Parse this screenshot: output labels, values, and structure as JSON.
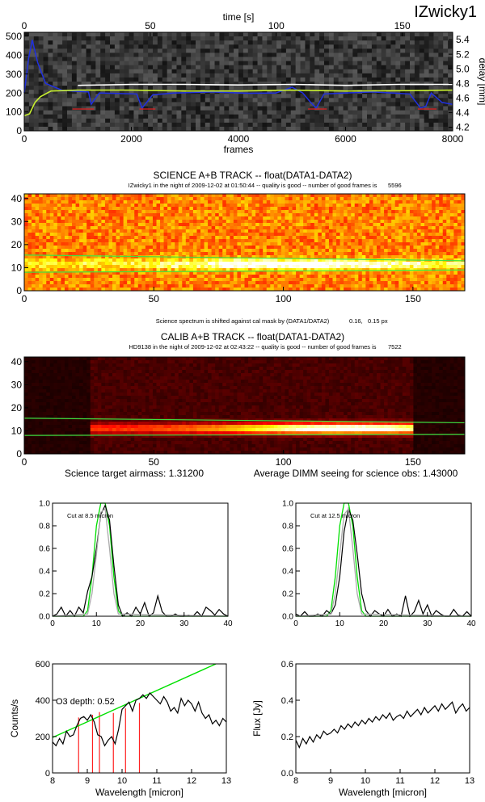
{
  "page_title": "IZwicky1",
  "chart_data": [
    {
      "id": "delay",
      "type": "line",
      "xlabel": "frames",
      "top_xlabel": "time [s]",
      "ylabel_right": "delay [mm]",
      "xlim": [
        0,
        8000
      ],
      "ylim": [
        0,
        520
      ],
      "top_xlim": [
        0,
        170
      ],
      "right_ylim": [
        4.15,
        5.5
      ],
      "x_ticks": [
        "0",
        "2000",
        "4000",
        "6000",
        "8000"
      ],
      "top_ticks": [
        "0",
        "50",
        "100",
        "150"
      ],
      "y_ticks": [
        "0",
        "100",
        "200",
        "300",
        "400",
        "500"
      ],
      "right_ticks": [
        "4.2",
        "4.4",
        "4.6",
        "4.8",
        "5.0",
        "5.2",
        "5.4"
      ],
      "background": "grayscale-noise",
      "series": [
        {
          "color": "#2030e0",
          "x": [
            0,
            80,
            150,
            250,
            400,
            700,
            900,
            1200,
            1250,
            1400,
            2100,
            2200,
            2400,
            2800,
            3500,
            4200,
            4700,
            5000,
            5200,
            5350,
            5450,
            5600,
            6000,
            6500,
            7200,
            7400,
            7500,
            7600,
            7800,
            8000
          ],
          "y": [
            200,
            380,
            480,
            360,
            250,
            215,
            210,
            205,
            140,
            200,
            195,
            120,
            190,
            200,
            205,
            198,
            200,
            230,
            200,
            150,
            120,
            195,
            200,
            205,
            195,
            120,
            130,
            200,
            150,
            140
          ]
        },
        {
          "color": "#c8f030",
          "x": [
            0,
            100,
            200,
            300,
            500,
            1000,
            2000,
            3000,
            4000,
            5000,
            6000,
            7000,
            8000
          ],
          "y": [
            80,
            90,
            150,
            180,
            210,
            215,
            215,
            210,
            210,
            215,
            210,
            212,
            215
          ]
        },
        {
          "color": "#ffffff",
          "x": [
            1000,
            2000,
            3000,
            4000,
            5000,
            6000,
            7000,
            8000
          ],
          "y": [
            240,
            245,
            245,
            242,
            245,
            240,
            245,
            245
          ]
        }
      ]
    },
    {
      "id": "science-track",
      "type": "heatmap",
      "title": "SCIENCE A+B TRACK -- float(DATA1-DATA2)",
      "subtitle_text": "IZwicky1 in the night of 2009-12-02 at 01:50:44 -- quality is good -- number of good frames is",
      "subtitle_value": "5596",
      "xlim": [
        0,
        170
      ],
      "ylim": [
        0,
        42
      ],
      "x_ticks": [
        "0",
        "50",
        "100",
        "150"
      ],
      "y_ticks": [
        "0",
        "10",
        "20",
        "30",
        "40"
      ],
      "colormap": "hot",
      "guide_lines": [
        [
          0,
          15.5,
          170,
          13
        ],
        [
          0,
          8,
          170,
          9
        ]
      ],
      "ridge_y": 11.5,
      "peak_x": 105,
      "footnote_text": "Science spectrum is shifted against cal mask by (DATA1/DATA2)",
      "footnote_values": [
        "0.16,",
        "0.15 px"
      ]
    },
    {
      "id": "calib-track",
      "type": "heatmap",
      "title": "CALIB A+B TRACK -- float(DATA1-DATA2)",
      "subtitle_text": "HD9138 in the night of 2009-12-02 at 02:43:22 -- quality is good -- number of good frames is",
      "subtitle_value": "7522",
      "xlim": [
        0,
        170
      ],
      "ylim": [
        0,
        42
      ],
      "x_ticks": [
        "0",
        "50",
        "100",
        "150"
      ],
      "y_ticks": [
        "0",
        "10",
        "20",
        "30",
        "40"
      ],
      "colormap": "hot",
      "guide_lines": [
        [
          0,
          15.5,
          170,
          13.5
        ],
        [
          0,
          8,
          170,
          8.5
        ]
      ],
      "ridge_y": 11,
      "peak_x": 125,
      "airmass_text": "Science target airmass: 1.31200",
      "seeing_text": "Average DIMM seeing for science obs: 1.43000"
    },
    {
      "id": "cut-8-5",
      "type": "line",
      "annotation": "Cut at 8.5 micron",
      "xlim": [
        0,
        40
      ],
      "ylim": [
        0,
        1.0
      ],
      "x_ticks": [
        "0",
        "10",
        "20",
        "30",
        "40"
      ],
      "y_ticks": [
        "0.0",
        "0.2",
        "0.4",
        "0.6",
        "0.8",
        "1.0"
      ],
      "series": [
        {
          "color": "#00e000",
          "x": [
            0,
            7,
            8,
            9,
            10,
            11,
            12,
            13,
            14,
            15,
            16,
            40
          ],
          "y": [
            0,
            0,
            0.05,
            0.35,
            0.8,
            1.0,
            1.0,
            0.8,
            0.35,
            0.05,
            0,
            0
          ]
        },
        {
          "color": "#000000",
          "x": [
            0,
            1,
            2,
            3,
            4,
            5,
            6,
            7,
            8,
            9,
            10,
            11,
            12,
            13,
            14,
            15,
            16,
            17,
            18,
            19,
            20,
            21,
            22,
            23,
            24,
            25,
            26,
            27,
            28,
            29,
            30,
            31,
            32,
            33,
            34,
            35,
            36,
            37,
            38,
            39,
            40
          ],
          "y": [
            0.0,
            0.02,
            0.08,
            0.0,
            0.05,
            0.0,
            0.08,
            0.03,
            0.22,
            0.35,
            0.6,
            0.9,
            0.98,
            0.85,
            0.45,
            0.1,
            0.0,
            0.03,
            0.0,
            0.08,
            0.02,
            0.12,
            0.0,
            0.03,
            0.18,
            0.04,
            0.0,
            0.0,
            0.02,
            0.0,
            0.0,
            0.01,
            0.0,
            0.04,
            0.0,
            0.08,
            0.05,
            0.01,
            0.06,
            0.02,
            0.0
          ]
        },
        {
          "color": "#aaaaaa",
          "x": [
            0,
            8,
            9,
            10,
            11,
            12,
            13,
            14,
            15,
            40
          ],
          "y": [
            0,
            0.02,
            0.2,
            0.55,
            0.92,
            0.95,
            0.6,
            0.2,
            0.02,
            0
          ]
        }
      ]
    },
    {
      "id": "cut-12-5",
      "type": "line",
      "annotation": "Cut at 12.5 micron",
      "xlim": [
        0,
        40
      ],
      "ylim": [
        0,
        1.0
      ],
      "x_ticks": [
        "0",
        "10",
        "20",
        "30",
        "40"
      ],
      "y_ticks": [
        "0.0",
        "0.2",
        "0.4",
        "0.6",
        "0.8",
        "1.0"
      ],
      "series": [
        {
          "color": "#00e000",
          "x": [
            0,
            7,
            8,
            9,
            10,
            11,
            12,
            13,
            14,
            15,
            16,
            40
          ],
          "y": [
            0,
            0,
            0.05,
            0.35,
            0.8,
            1.0,
            1.0,
            0.8,
            0.35,
            0.05,
            0,
            0
          ]
        },
        {
          "color": "#000000",
          "x": [
            0,
            1,
            2,
            3,
            4,
            5,
            6,
            7,
            8,
            9,
            10,
            11,
            12,
            13,
            14,
            15,
            16,
            17,
            18,
            19,
            20,
            21,
            22,
            23,
            24,
            25,
            26,
            27,
            28,
            29,
            30,
            31,
            32,
            33,
            34,
            35,
            36,
            37,
            38,
            39,
            40
          ],
          "y": [
            0.02,
            0.0,
            0.04,
            0.0,
            0.0,
            0.02,
            0.0,
            0.05,
            0.02,
            0.1,
            0.35,
            0.75,
            0.95,
            0.85,
            0.55,
            0.2,
            0.05,
            0.0,
            0.05,
            0.02,
            0.0,
            0.06,
            0.0,
            0.02,
            0.0,
            0.18,
            0.0,
            0.04,
            0.14,
            0.02,
            0.1,
            0.0,
            0.05,
            0.02,
            0.0,
            0.0,
            0.06,
            0.01,
            0.0,
            0.04,
            0.0
          ]
        },
        {
          "color": "#aaaaaa",
          "x": [
            0,
            8,
            9,
            10,
            11,
            12,
            13,
            14,
            15,
            40
          ],
          "y": [
            0,
            0.02,
            0.2,
            0.55,
            0.9,
            0.95,
            0.6,
            0.2,
            0.02,
            0
          ]
        }
      ]
    },
    {
      "id": "counts",
      "type": "line",
      "xlabel": "Wavelength [micron]",
      "ylabel": "Counts/s",
      "annotation": "O3 depth:  0.52",
      "xlim": [
        8,
        13
      ],
      "ylim": [
        0,
        600
      ],
      "x_ticks": [
        "8",
        "9",
        "10",
        "11",
        "12",
        "13"
      ],
      "y_ticks": [
        "0",
        "200",
        "400",
        "600"
      ],
      "fit_line": {
        "color": "#00e000",
        "x": [
          8,
          12.7
        ],
        "y": [
          195,
          600
        ]
      },
      "red_lines": {
        "color": "#ff2020",
        "x": [
          8.75,
          9.15,
          9.35,
          9.75,
          10.1,
          10.5
        ],
        "y": [
          305,
          320,
          335,
          330,
          355,
          385
        ]
      },
      "series": [
        {
          "color": "#000000",
          "x": [
            8,
            8.1,
            8.2,
            8.3,
            8.4,
            8.5,
            8.6,
            8.7,
            8.8,
            8.9,
            9.0,
            9.1,
            9.2,
            9.3,
            9.4,
            9.5,
            9.6,
            9.7,
            9.8,
            9.9,
            10.0,
            10.1,
            10.2,
            10.3,
            10.4,
            10.5,
            10.6,
            10.7,
            10.8,
            10.9,
            11.0,
            11.1,
            11.2,
            11.3,
            11.4,
            11.5,
            11.6,
            11.7,
            11.8,
            11.9,
            12.0,
            12.1,
            12.2,
            12.3,
            12.4,
            12.5,
            12.6,
            12.7,
            12.8,
            12.9,
            13.0
          ],
          "y": [
            170,
            150,
            190,
            160,
            230,
            200,
            210,
            260,
            300,
            310,
            290,
            320,
            280,
            210,
            200,
            150,
            180,
            200,
            160,
            240,
            350,
            370,
            390,
            340,
            400,
            410,
            430,
            410,
            440,
            420,
            400,
            380,
            420,
            390,
            340,
            360,
            330,
            410,
            370,
            400,
            380,
            340,
            390,
            330,
            300,
            320,
            270,
            290,
            260,
            300,
            280
          ]
        }
      ]
    },
    {
      "id": "flux",
      "type": "line",
      "xlabel": "Wavelength [micron]",
      "ylabel": "Flux [Jy]",
      "xlim": [
        8,
        13
      ],
      "ylim": [
        0,
        0.6
      ],
      "x_ticks": [
        "8",
        "9",
        "10",
        "11",
        "12",
        "13"
      ],
      "y_ticks": [
        "0.0",
        "0.2",
        "0.4",
        "0.6"
      ],
      "series": [
        {
          "color": "#000000",
          "x": [
            8,
            8.1,
            8.2,
            8.3,
            8.4,
            8.5,
            8.6,
            8.7,
            8.8,
            8.9,
            9.0,
            9.1,
            9.2,
            9.3,
            9.4,
            9.5,
            9.6,
            9.7,
            9.8,
            9.9,
            10.0,
            10.1,
            10.2,
            10.3,
            10.4,
            10.5,
            10.6,
            10.7,
            10.8,
            10.9,
            11.0,
            11.1,
            11.2,
            11.3,
            11.4,
            11.5,
            11.6,
            11.7,
            11.8,
            11.9,
            12.0,
            12.1,
            12.2,
            12.3,
            12.4,
            12.5,
            12.6,
            12.7,
            12.8,
            12.9,
            13.0
          ],
          "y": [
            0.18,
            0.14,
            0.19,
            0.16,
            0.2,
            0.17,
            0.21,
            0.19,
            0.23,
            0.21,
            0.22,
            0.24,
            0.22,
            0.26,
            0.24,
            0.27,
            0.25,
            0.28,
            0.26,
            0.29,
            0.27,
            0.3,
            0.28,
            0.31,
            0.29,
            0.32,
            0.3,
            0.33,
            0.29,
            0.31,
            0.32,
            0.3,
            0.34,
            0.31,
            0.33,
            0.35,
            0.32,
            0.36,
            0.33,
            0.35,
            0.37,
            0.34,
            0.38,
            0.35,
            0.37,
            0.39,
            0.33,
            0.36,
            0.38,
            0.34,
            0.36
          ]
        }
      ]
    }
  ]
}
